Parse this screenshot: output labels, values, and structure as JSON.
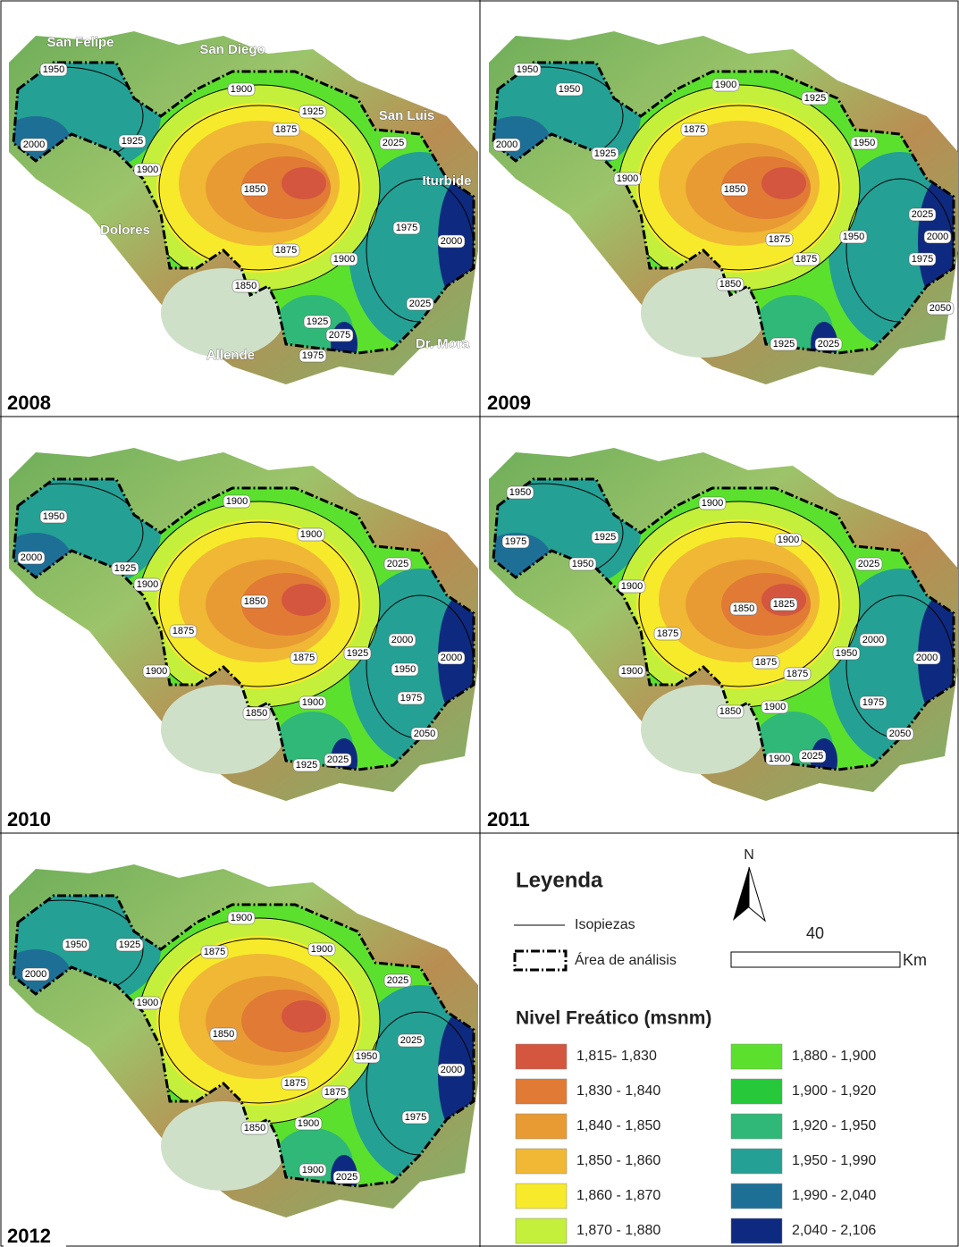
{
  "panels": [
    {
      "year": "2008",
      "contour_labels": [
        "1950",
        "1900",
        "1925",
        "1875",
        "2000",
        "1925",
        "1900",
        "2025",
        "1850",
        "1975",
        "2000",
        "1875",
        "1900",
        "1850",
        "2025",
        "1925",
        "2075",
        "1975"
      ],
      "places": [
        "San Felipe",
        "San Diego",
        "San Luis",
        "Iturbide",
        "Dolores",
        "Allende",
        "Dr. Mora"
      ]
    },
    {
      "year": "2009",
      "contour_labels": [
        "1950",
        "1950",
        "1900",
        "1925",
        "1875",
        "2000",
        "1925",
        "1900",
        "1950",
        "1850",
        "2025",
        "2000",
        "1950",
        "1875",
        "1875",
        "1975",
        "1850",
        "2050",
        "1925",
        "2025"
      ]
    },
    {
      "year": "2010",
      "contour_labels": [
        "1900",
        "1950",
        "1900",
        "2000",
        "2025",
        "1925",
        "1900",
        "1850",
        "1875",
        "1925",
        "2000",
        "1950",
        "2000",
        "1875",
        "1900",
        "1975",
        "1900",
        "1850",
        "2050",
        "1925",
        "2025"
      ]
    },
    {
      "year": "2011",
      "contour_labels": [
        "1950",
        "1900",
        "1975",
        "1950",
        "1925",
        "1900",
        "1900",
        "2025",
        "1850",
        "1825",
        "1875",
        "1950",
        "2000",
        "2000",
        "1875",
        "1875",
        "1900",
        "1975",
        "1900",
        "1850",
        "2050",
        "1900",
        "2025"
      ]
    },
    {
      "year": "2012",
      "contour_labels": [
        "1900",
        "1950",
        "1925",
        "1900",
        "1875",
        "2000",
        "2025",
        "1900",
        "1850",
        "2025",
        "1950",
        "2000",
        "1875",
        "1875",
        "1975",
        "1900",
        "1850",
        "1900",
        "2025"
      ]
    }
  ],
  "legend": {
    "title": "Leyenda",
    "line_label": "Isopiezas",
    "area_label": "Área de análisis",
    "north": "N",
    "scale_value": "40",
    "scale_unit": "Km",
    "classes_title": "Nivel Freático (msnm)",
    "classes": [
      {
        "label": "1,815- 1,830",
        "color": "#d4563f"
      },
      {
        "label": "1,830 - 1,840",
        "color": "#e07a35"
      },
      {
        "label": "1,840 - 1,850",
        "color": "#e99b33"
      },
      {
        "label": "1,850 - 1,860",
        "color": "#f0b834"
      },
      {
        "label": "1,860 - 1,870",
        "color": "#f7ea2b"
      },
      {
        "label": "1,870 - 1,880",
        "color": "#c4f03b"
      },
      {
        "label": "1,880 - 1,900",
        "color": "#5ce02e"
      },
      {
        "label": "1,900 - 1,920",
        "color": "#28c83b"
      },
      {
        "label": "1,920 - 1,950",
        "color": "#2fb878"
      },
      {
        "label": "1,950 - 1,990",
        "color": "#24a095"
      },
      {
        "label": "1,990 - 2,040",
        "color": "#1e6f95"
      },
      {
        "label": "2,040 - 2,106",
        "color": "#0e2a80"
      }
    ]
  }
}
